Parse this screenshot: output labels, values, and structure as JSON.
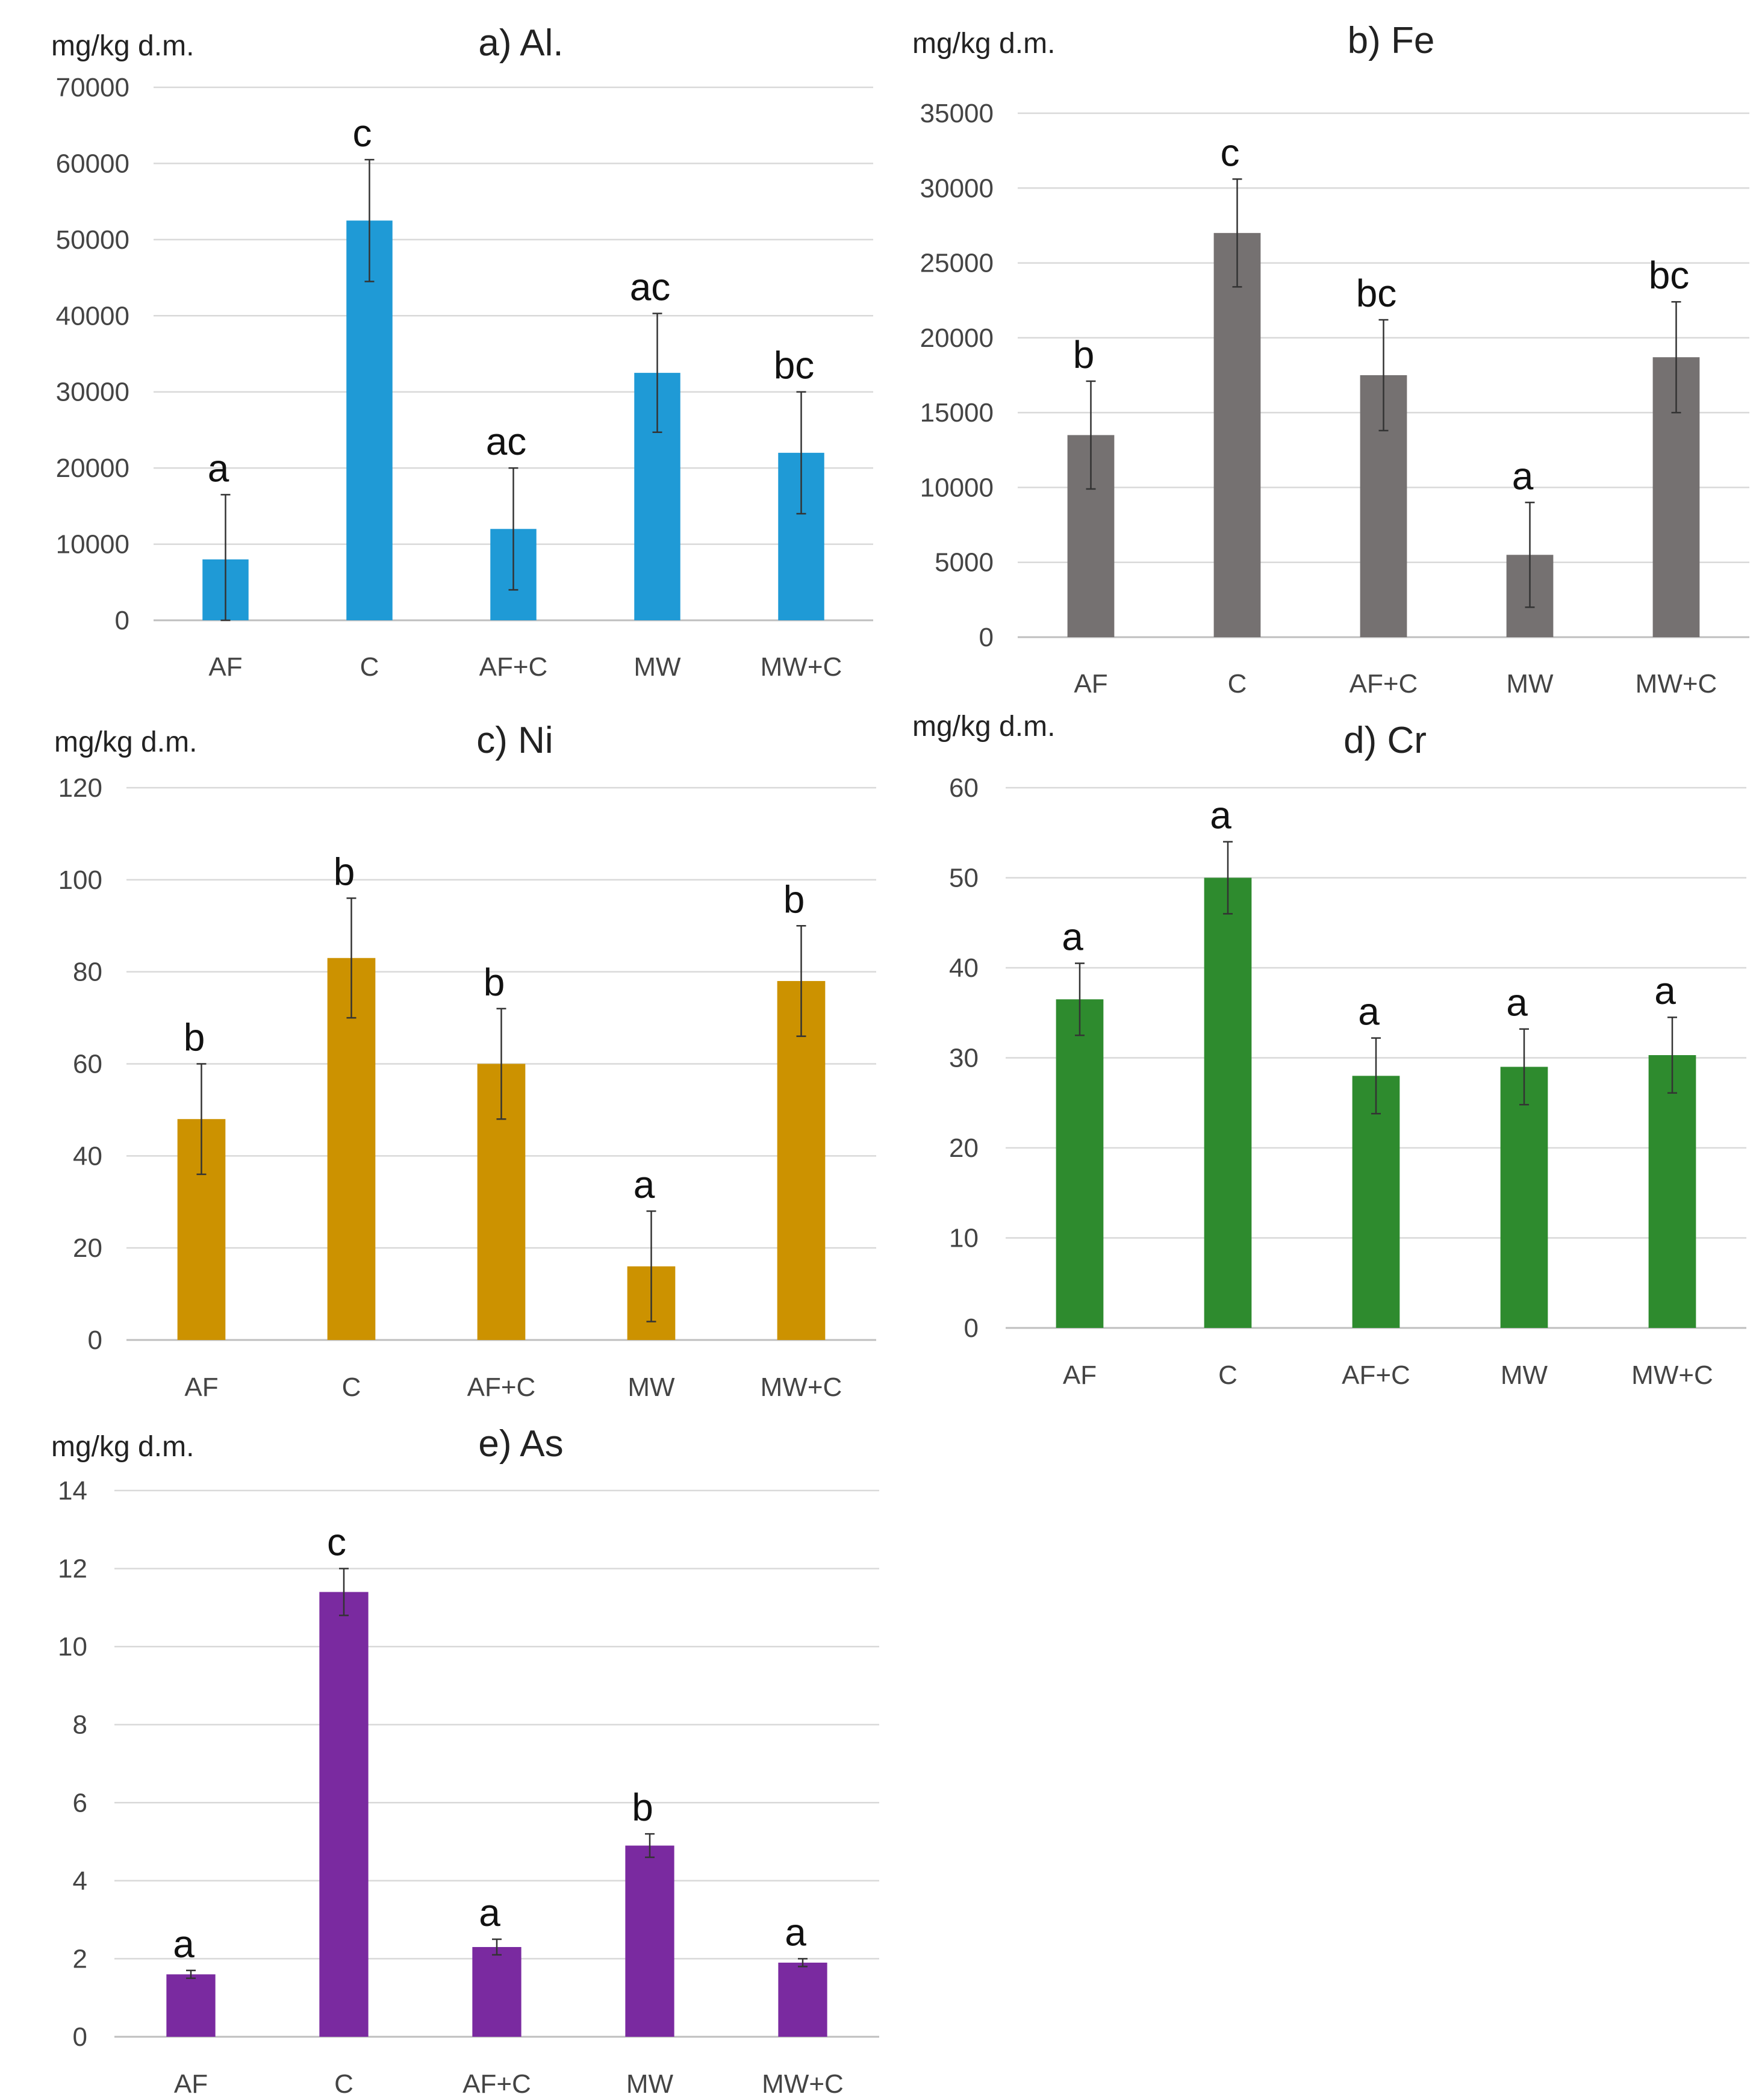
{
  "chart_data": [
    {
      "type": "bar",
      "title": "a) Al.",
      "ylabel": "mg/kg d.m.",
      "ylim": [
        0,
        70000
      ],
      "yticks": [
        0,
        10000,
        20000,
        30000,
        40000,
        50000,
        60000,
        70000
      ],
      "categories": [
        "AF",
        "C",
        "AF+C",
        "MW",
        "MW+C"
      ],
      "values": [
        8000,
        52500,
        12000,
        32500,
        22000
      ],
      "errors": [
        8500,
        8000,
        8000,
        7800,
        8000
      ],
      "significance": [
        "a",
        "c",
        "ac",
        "ac",
        "bc"
      ],
      "color": "#1f9ad6"
    },
    {
      "type": "bar",
      "title": "b) Fe",
      "ylabel": "mg/kg d.m.",
      "ylim": [
        0,
        35000
      ],
      "yticks": [
        0,
        5000,
        10000,
        15000,
        20000,
        25000,
        30000,
        35000
      ],
      "categories": [
        "AF",
        "C",
        "AF+C",
        "MW",
        "MW+C"
      ],
      "values": [
        13500,
        27000,
        17500,
        5500,
        18700
      ],
      "errors": [
        3600,
        3600,
        3700,
        3500,
        3700
      ],
      "significance": [
        "b",
        "c",
        "bc",
        "a",
        "bc"
      ],
      "color": "#757171"
    },
    {
      "type": "bar",
      "title": "c) Ni",
      "ylabel": "mg/kg d.m.",
      "ylim": [
        0,
        120
      ],
      "yticks": [
        0,
        20,
        40,
        60,
        80,
        100,
        120
      ],
      "categories": [
        "AF",
        "C",
        "AF+C",
        "MW",
        "MW+C"
      ],
      "values": [
        48,
        83,
        60,
        16,
        78
      ],
      "errors": [
        12,
        13,
        12,
        12,
        12
      ],
      "significance": [
        "b",
        "b",
        "b",
        "a",
        "b"
      ],
      "color": "#cc9200"
    },
    {
      "type": "bar",
      "title": "d) Cr",
      "ylabel": "mg/kg d.m.",
      "ylim": [
        0,
        60
      ],
      "yticks": [
        0,
        10,
        20,
        30,
        40,
        50,
        60
      ],
      "categories": [
        "AF",
        "C",
        "AF+C",
        "MW",
        "MW+C"
      ],
      "values": [
        36.5,
        50,
        28,
        29,
        30.3
      ],
      "errors": [
        4,
        4,
        4.2,
        4.2,
        4.2
      ],
      "significance": [
        "a",
        "a",
        "a",
        "a",
        "a"
      ],
      "color": "#2e8b2e"
    },
    {
      "type": "bar",
      "title": "e) As",
      "ylabel": "mg/kg d.m.",
      "ylim": [
        0,
        14
      ],
      "yticks": [
        0,
        2,
        4,
        6,
        8,
        10,
        12,
        14
      ],
      "categories": [
        "AF",
        "C",
        "AF+C",
        "MW",
        "MW+C"
      ],
      "values": [
        1.6,
        11.4,
        2.3,
        4.9,
        1.9
      ],
      "errors": [
        0.1,
        0.6,
        0.2,
        0.3,
        0.1
      ],
      "significance": [
        "a",
        "c",
        "a",
        "b",
        "a"
      ],
      "color": "#7a2aa0"
    }
  ]
}
